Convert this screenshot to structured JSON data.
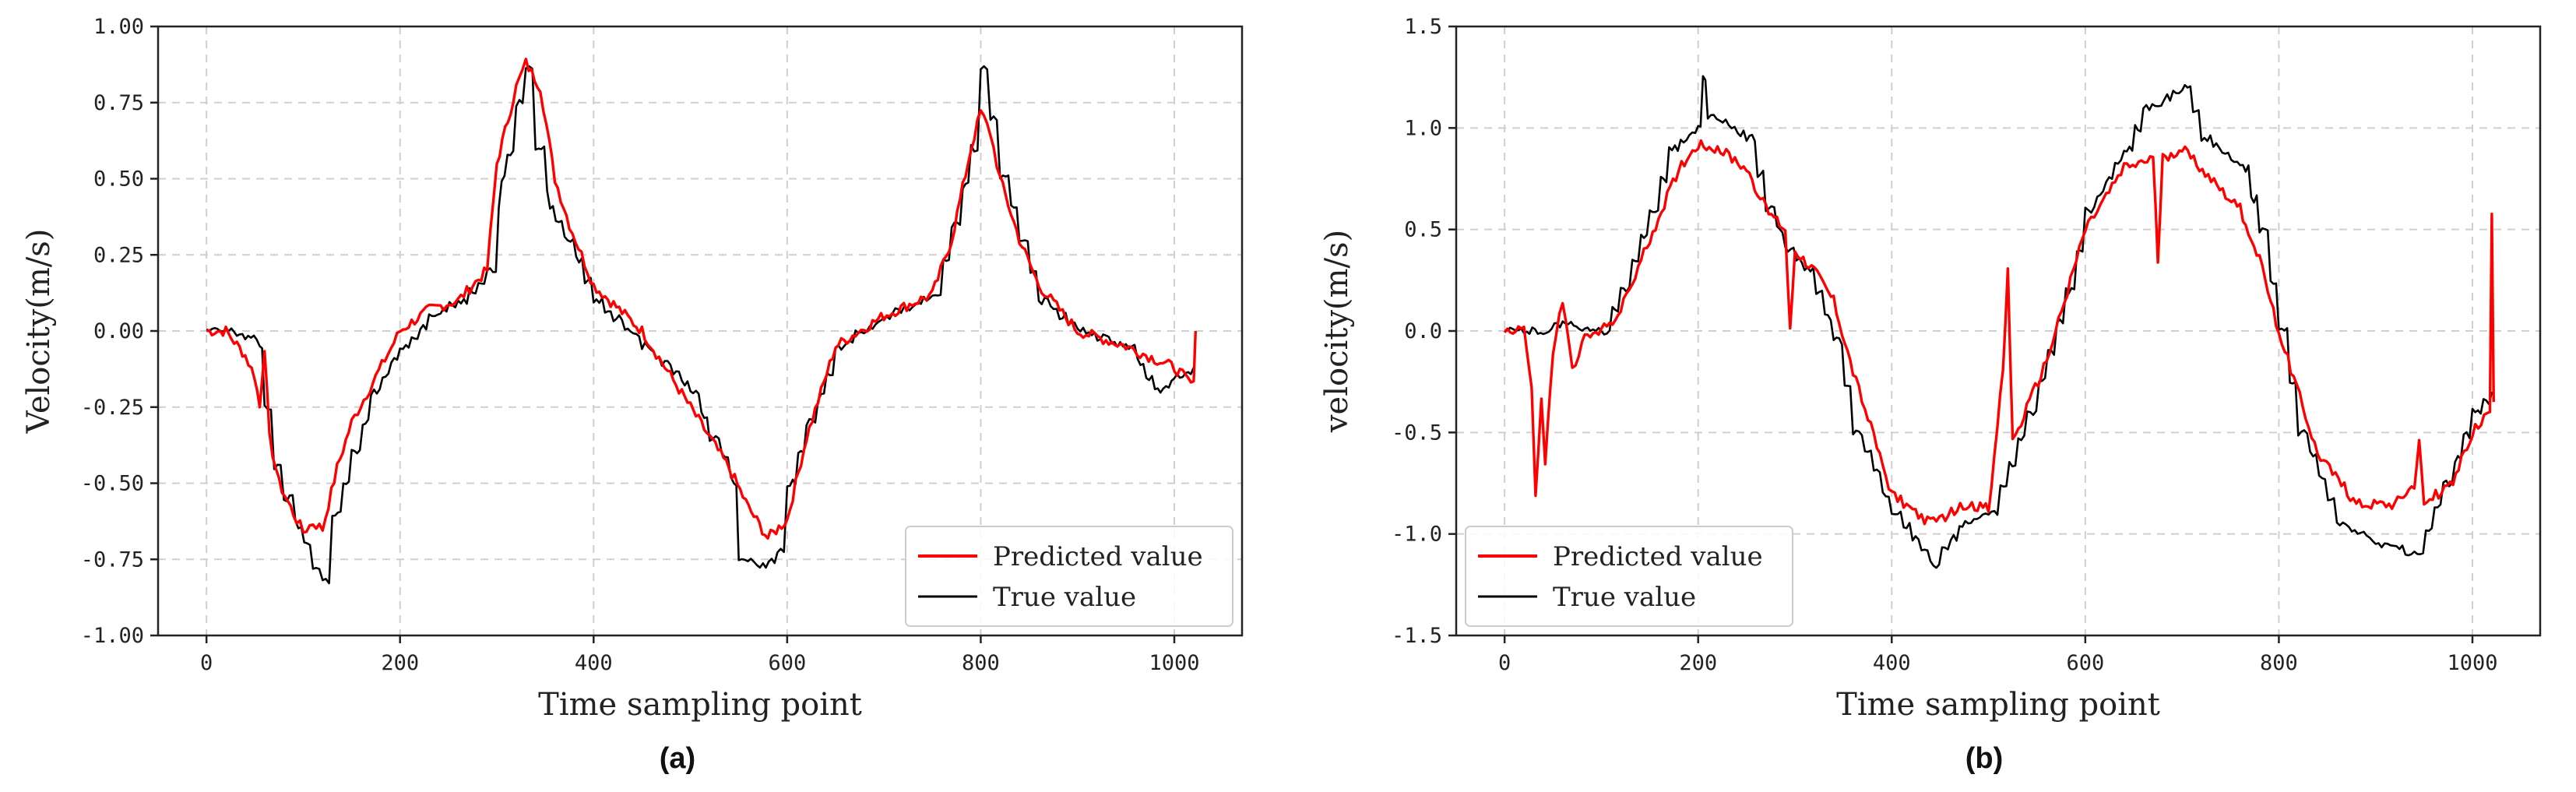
{
  "chart_data": [
    {
      "id": "a",
      "type": "line",
      "caption": "(a)",
      "xlabel": "Time sampling point",
      "ylabel": "Velocity(m/s)",
      "xlim": [
        -50,
        1070
      ],
      "ylim": [
        -1.0,
        1.0
      ],
      "xticks": [
        0,
        200,
        400,
        600,
        800,
        1000
      ],
      "xtick_labels": [
        "0",
        "200",
        "400",
        "600",
        "800",
        "1000"
      ],
      "yticks": [
        -1.0,
        -0.75,
        -0.5,
        -0.25,
        0.0,
        0.25,
        0.5,
        0.75,
        1.0
      ],
      "ytick_labels": [
        "-1.00",
        "-0.75",
        "-0.50",
        "-0.25",
        "0.00",
        "0.25",
        "0.50",
        "0.75",
        "1.00"
      ],
      "grid": true,
      "legend_position": "bottom-right",
      "series": [
        {
          "name": "Predicted value",
          "color": "#ff0000",
          "x": [
            0,
            20,
            40,
            50,
            55,
            60,
            65,
            75,
            90,
            100,
            110,
            120,
            135,
            150,
            175,
            200,
            230,
            260,
            290,
            300,
            320,
            330,
            345,
            360,
            375,
            400,
            450,
            500,
            520,
            540,
            560,
            580,
            600,
            620,
            650,
            700,
            750,
            770,
            790,
            800,
            810,
            820,
            840,
            860,
            900,
            950,
            1000,
            1020,
            1022
          ],
          "values": [
            0.0,
            0.0,
            -0.08,
            -0.15,
            -0.25,
            -0.05,
            -0.35,
            -0.5,
            -0.6,
            -0.66,
            -0.63,
            -0.65,
            -0.45,
            -0.3,
            -0.15,
            0.0,
            0.07,
            0.1,
            0.2,
            0.55,
            0.8,
            0.88,
            0.8,
            0.5,
            0.35,
            0.15,
            0.0,
            -0.25,
            -0.35,
            -0.45,
            -0.58,
            -0.68,
            -0.62,
            -0.35,
            -0.05,
            0.05,
            0.12,
            0.3,
            0.6,
            0.72,
            0.65,
            0.5,
            0.3,
            0.15,
            0.0,
            -0.05,
            -0.12,
            -0.18,
            0.0
          ]
        },
        {
          "name": "True value",
          "color": "#000000",
          "x": [
            0,
            20,
            40,
            55,
            60,
            70,
            80,
            95,
            110,
            120,
            130,
            150,
            170,
            200,
            230,
            260,
            290,
            305,
            320,
            330,
            340,
            355,
            370,
            400,
            450,
            500,
            520,
            545,
            550,
            575,
            590,
            600,
            620,
            650,
            700,
            750,
            770,
            790,
            800,
            810,
            820,
            840,
            860,
            900,
            950,
            980,
            1000,
            1020
          ],
          "values": [
            0.0,
            0.0,
            -0.02,
            -0.05,
            -0.25,
            -0.45,
            -0.55,
            -0.65,
            -0.78,
            -0.82,
            -0.6,
            -0.4,
            -0.2,
            -0.05,
            0.05,
            0.1,
            0.2,
            0.5,
            0.75,
            0.87,
            0.6,
            0.4,
            0.3,
            0.1,
            -0.05,
            -0.2,
            -0.35,
            -0.5,
            -0.75,
            -0.77,
            -0.72,
            -0.5,
            -0.3,
            -0.05,
            0.05,
            0.12,
            0.35,
            0.6,
            0.86,
            0.7,
            0.5,
            0.3,
            0.1,
            0.0,
            -0.05,
            -0.2,
            -0.15,
            -0.12
          ]
        }
      ]
    },
    {
      "id": "b",
      "type": "line",
      "caption": "(b)",
      "xlabel": "Time sampling point",
      "ylabel": "velocity(m/s)",
      "xlim": [
        -50,
        1070
      ],
      "ylim": [
        -1.5,
        1.5
      ],
      "xticks": [
        0,
        200,
        400,
        600,
        800,
        1000
      ],
      "xtick_labels": [
        "0",
        "200",
        "400",
        "600",
        "800",
        "1000"
      ],
      "yticks": [
        -1.5,
        -1.0,
        -0.5,
        0.0,
        0.5,
        1.0,
        1.5
      ],
      "ytick_labels": [
        "-1.5",
        "-1.0",
        "-0.5",
        "0.0",
        "0.5",
        "1.0",
        "1.5"
      ],
      "grid": true,
      "legend_position": "bottom-left",
      "series": [
        {
          "name": "Predicted value",
          "color": "#ff0000",
          "x": [
            0,
            20,
            28,
            32,
            38,
            42,
            50,
            60,
            70,
            80,
            100,
            120,
            150,
            180,
            200,
            220,
            250,
            270,
            290,
            295,
            300,
            320,
            340,
            360,
            400,
            440,
            480,
            500,
            515,
            520,
            525,
            560,
            600,
            640,
            670,
            675,
            680,
            700,
            730,
            760,
            780,
            800,
            840,
            880,
            920,
            940,
            945,
            950,
            980,
            1000,
            1018,
            1020,
            1022
          ],
          "values": [
            0.0,
            0.02,
            -0.3,
            -0.8,
            -0.35,
            -0.65,
            -0.1,
            0.15,
            -0.2,
            -0.05,
            0.0,
            0.1,
            0.45,
            0.8,
            0.92,
            0.9,
            0.8,
            0.6,
            0.5,
            0.0,
            0.4,
            0.3,
            0.15,
            -0.2,
            -0.8,
            -0.95,
            -0.85,
            -0.88,
            -0.2,
            0.3,
            -0.55,
            -0.15,
            0.5,
            0.8,
            0.85,
            0.35,
            0.85,
            0.9,
            0.75,
            0.6,
            0.35,
            0.0,
            -0.6,
            -0.85,
            -0.85,
            -0.75,
            -0.55,
            -0.85,
            -0.75,
            -0.5,
            -0.4,
            0.58,
            -0.35
          ]
        },
        {
          "name": "True value",
          "color": "#000000",
          "x": [
            0,
            20,
            40,
            60,
            80,
            100,
            120,
            150,
            170,
            200,
            205,
            210,
            250,
            270,
            290,
            310,
            340,
            360,
            400,
            440,
            470,
            500,
            540,
            580,
            600,
            640,
            660,
            700,
            720,
            760,
            780,
            800,
            820,
            860,
            900,
            940,
            1000,
            1020
          ],
          "values": [
            0.0,
            0.0,
            0.0,
            0.05,
            0.0,
            0.0,
            0.2,
            0.6,
            0.9,
            1.0,
            1.25,
            1.05,
            0.95,
            0.6,
            0.4,
            0.3,
            -0.05,
            -0.5,
            -0.9,
            -1.15,
            -0.95,
            -0.9,
            -0.4,
            0.2,
            0.6,
            0.9,
            1.1,
            1.2,
            0.95,
            0.8,
            0.5,
            0.0,
            -0.5,
            -0.95,
            -1.05,
            -1.1,
            -0.4,
            -0.3
          ]
        }
      ]
    }
  ]
}
